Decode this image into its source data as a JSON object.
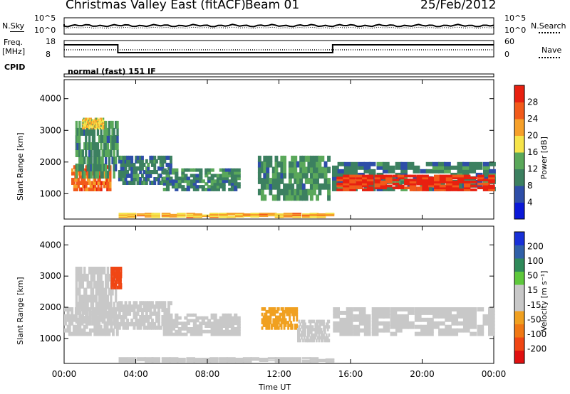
{
  "header": {
    "radar_name": "Christmas Valley East (fitACF)",
    "beam": "Beam 01",
    "date": "25/Feb/2012"
  },
  "strip": {
    "nsky_label": "N.Sky",
    "nsky_ticks": [
      "10^5",
      "10^0"
    ],
    "nsearch_label": "N.Search",
    "nsearch_ticks": [
      "10^5",
      "10^0"
    ],
    "freq_label": "Freq.",
    "freq_unit": "[MHz]",
    "freq_ticks": [
      "18",
      "8"
    ],
    "nave_label": "Nave",
    "nave_ticks": [
      "60",
      "0"
    ],
    "cpid_label": "CPID",
    "cpid_value": "normal (fast) 151 IF"
  },
  "colors": {
    "power_scale": [
      "#0a18d8",
      "#2e4ea8",
      "#3c8060",
      "#5aa85a",
      "#f6e44a",
      "#f6a02a",
      "#f25a1a",
      "#e82010"
    ],
    "velocity_scale": [
      "#1830d8",
      "#3060a8",
      "#2f8a5a",
      "#5ec83c",
      "#c8c8c8",
      "#c8c8c8",
      "#f0a020",
      "#f07814",
      "#f04614",
      "#e01010"
    ]
  },
  "chart_data": [
    {
      "type": "heatmap",
      "panel": "power",
      "ylabel": "Slant Range [km]",
      "yticks": [
        "4000",
        "3000",
        "2000",
        "1000"
      ],
      "ylim": [
        200,
        4600
      ],
      "colorbar_label": "Power [dB]",
      "colorbar_ticks": [
        "28",
        "24",
        "20",
        "16",
        "12",
        "8",
        "4"
      ],
      "colorbar_range": [
        0,
        32
      ],
      "regions": [
        {
          "t0": 0.4,
          "t1": 2.6,
          "r0": 1100,
          "r1": 1900,
          "power": 24
        },
        {
          "t0": 0.6,
          "t1": 3.0,
          "r0": 1500,
          "r1": 3300,
          "power": 10
        },
        {
          "t0": 1.0,
          "t1": 2.2,
          "r0": 3050,
          "r1": 3400,
          "power": 18
        },
        {
          "t0": 3.0,
          "t1": 6.0,
          "r0": 1300,
          "r1": 2200,
          "power": 8
        },
        {
          "t0": 5.5,
          "t1": 9.8,
          "r0": 1100,
          "r1": 1800,
          "power": 9
        },
        {
          "t0": 10.8,
          "t1": 14.8,
          "r0": 800,
          "r1": 2200,
          "power": 10
        },
        {
          "t0": 14.9,
          "t1": 24.0,
          "r0": 1100,
          "r1": 2000,
          "power": 8
        },
        {
          "t0": 15.2,
          "t1": 24.0,
          "r0": 1100,
          "r1": 1600,
          "power": 28
        },
        {
          "t0": 3.0,
          "t1": 15.0,
          "r0": 250,
          "r1": 400,
          "power": 20
        }
      ]
    },
    {
      "type": "heatmap",
      "panel": "velocity",
      "ylabel": "Slant Range [km]",
      "yticks": [
        "4000",
        "3000",
        "2000",
        "1000"
      ],
      "ylim": [
        200,
        4600
      ],
      "colorbar_label": "Velocity [m s⁻¹]",
      "colorbar_ticks": [
        "200",
        "100",
        "50",
        "15",
        "-15",
        "-50",
        "-100",
        "-200"
      ],
      "colorbar_range": [
        -250,
        250
      ],
      "regions": [
        {
          "t0": 0.0,
          "t1": 3.0,
          "r0": 1100,
          "r1": 2000,
          "velocity": 0
        },
        {
          "t0": 0.6,
          "t1": 3.0,
          "r0": 1500,
          "r1": 3300,
          "velocity": 0
        },
        {
          "t0": 2.6,
          "t1": 3.2,
          "r0": 2600,
          "r1": 3300,
          "velocity": -180
        },
        {
          "t0": 3.0,
          "t1": 6.0,
          "r0": 1300,
          "r1": 2200,
          "velocity": 40
        },
        {
          "t0": 5.5,
          "t1": 9.8,
          "r0": 1100,
          "r1": 1800,
          "velocity": 40
        },
        {
          "t0": 11.0,
          "t1": 13.0,
          "r0": 1300,
          "r1": 2000,
          "velocity": -80
        },
        {
          "t0": 13.0,
          "t1": 14.8,
          "r0": 900,
          "r1": 1600,
          "velocity": 0
        },
        {
          "t0": 15.0,
          "t1": 24.0,
          "r0": 1100,
          "r1": 2000,
          "velocity": 0
        },
        {
          "t0": 3.0,
          "t1": 15.0,
          "r0": 250,
          "r1": 400,
          "velocity": -40
        }
      ]
    }
  ],
  "xaxis": {
    "label": "Time UT",
    "ticks": [
      "00:00",
      "04:00",
      "08:00",
      "12:00",
      "16:00",
      "20:00",
      "00:00"
    ],
    "xlim": [
      0,
      24
    ]
  }
}
